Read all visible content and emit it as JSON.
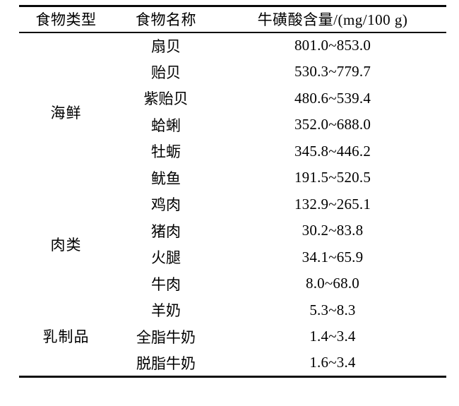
{
  "table": {
    "headers": [
      "食物类型",
      "食物名称",
      "牛磺酸含量/(mg/100 g)"
    ],
    "rows": [
      {
        "group": "海鲜",
        "name": "扇贝",
        "value": "801.0~853.0"
      },
      {
        "name": "贻贝",
        "value": "530.3~779.7"
      },
      {
        "name": "紫贻贝",
        "value": "480.6~539.4"
      },
      {
        "name": "蛤蜊",
        "value": "352.0~688.0"
      },
      {
        "name": "牡蛎",
        "value": "345.8~446.2"
      },
      {
        "name": "鱿鱼",
        "value": "191.5~520.5"
      },
      {
        "group": "肉类",
        "name": "鸡肉",
        "value": "132.9~265.1"
      },
      {
        "name": "猪肉",
        "value": "30.2~83.8"
      },
      {
        "name": "火腿",
        "value": "34.1~65.9"
      },
      {
        "name": "牛肉",
        "value": "8.0~68.0"
      },
      {
        "group": "乳制品",
        "name": "羊奶",
        "value": "5.3~8.3"
      },
      {
        "name": "全脂牛奶",
        "value": "1.4~3.4"
      },
      {
        "name": "脱脂牛奶",
        "value": "1.6~3.4"
      }
    ]
  },
  "chart_data": {
    "type": "table",
    "title": "",
    "columns": [
      "食物类型",
      "食物名称",
      "牛磺酸含量/(mg/100 g)"
    ],
    "rows": [
      [
        "海鲜",
        "扇贝",
        "801.0~853.0"
      ],
      [
        "海鲜",
        "贻贝",
        "530.3~779.7"
      ],
      [
        "海鲜",
        "紫贻贝",
        "480.6~539.4"
      ],
      [
        "海鲜",
        "蛤蜊",
        "352.0~688.0"
      ],
      [
        "海鲜",
        "牡蛎",
        "345.8~446.2"
      ],
      [
        "海鲜",
        "鱿鱼",
        "191.5~520.5"
      ],
      [
        "肉类",
        "鸡肉",
        "132.9~265.1"
      ],
      [
        "肉类",
        "猪肉",
        "30.2~83.8"
      ],
      [
        "肉类",
        "火腿",
        "34.1~65.9"
      ],
      [
        "肉类",
        "牛肉",
        "8.0~68.0"
      ],
      [
        "乳制品",
        "羊奶",
        "5.3~8.3"
      ],
      [
        "乳制品",
        "全脂牛奶",
        "1.4~3.4"
      ],
      [
        "乳制品",
        "脱脂牛奶",
        "1.6~3.4"
      ]
    ]
  },
  "colors": {
    "rule": "#0a0a0a",
    "text": "#000000",
    "background": "#ffffff"
  }
}
